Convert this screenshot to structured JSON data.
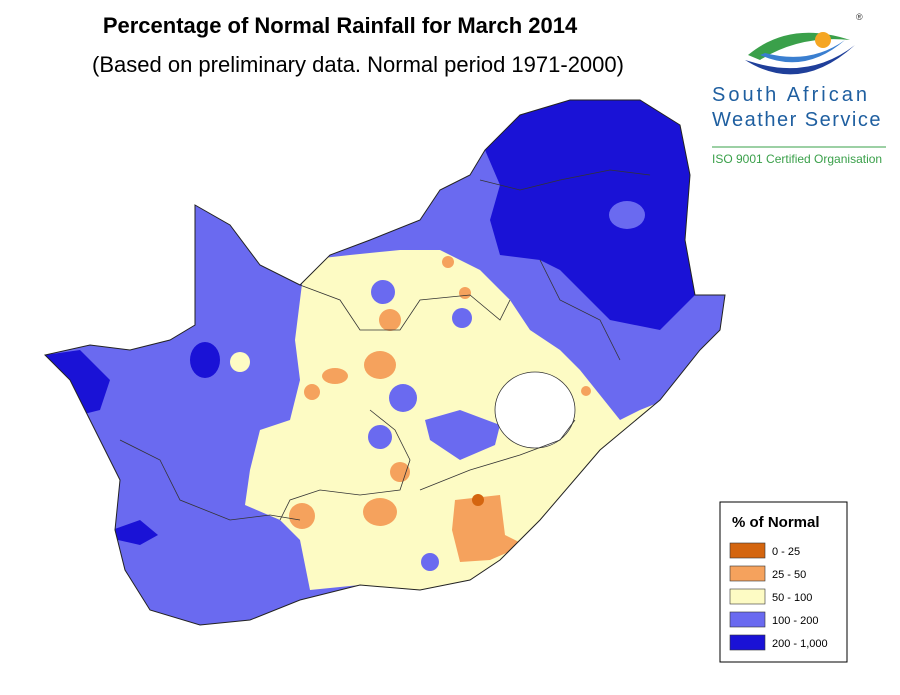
{
  "header": {
    "title": "Percentage of Normal Rainfall for March  2014",
    "subtitle": "(Based on preliminary data. Normal period 1971-2000)"
  },
  "logo": {
    "name_line1": "South African",
    "name_line2": "Weather Service",
    "certification": "ISO 9001 Certified Organisation",
    "mark": "®"
  },
  "legend": {
    "title": "% of Normal",
    "items": [
      {
        "label": "0 - 25",
        "color": "#d4650f"
      },
      {
        "label": "25 - 50",
        "color": "#f5a25d"
      },
      {
        "label": "50 - 100",
        "color": "#fdfbc4"
      },
      {
        "label": "100 - 200",
        "color": "#6a6af0"
      },
      {
        "label": "200 - 1,000",
        "color": "#1a12d6"
      }
    ]
  }
}
